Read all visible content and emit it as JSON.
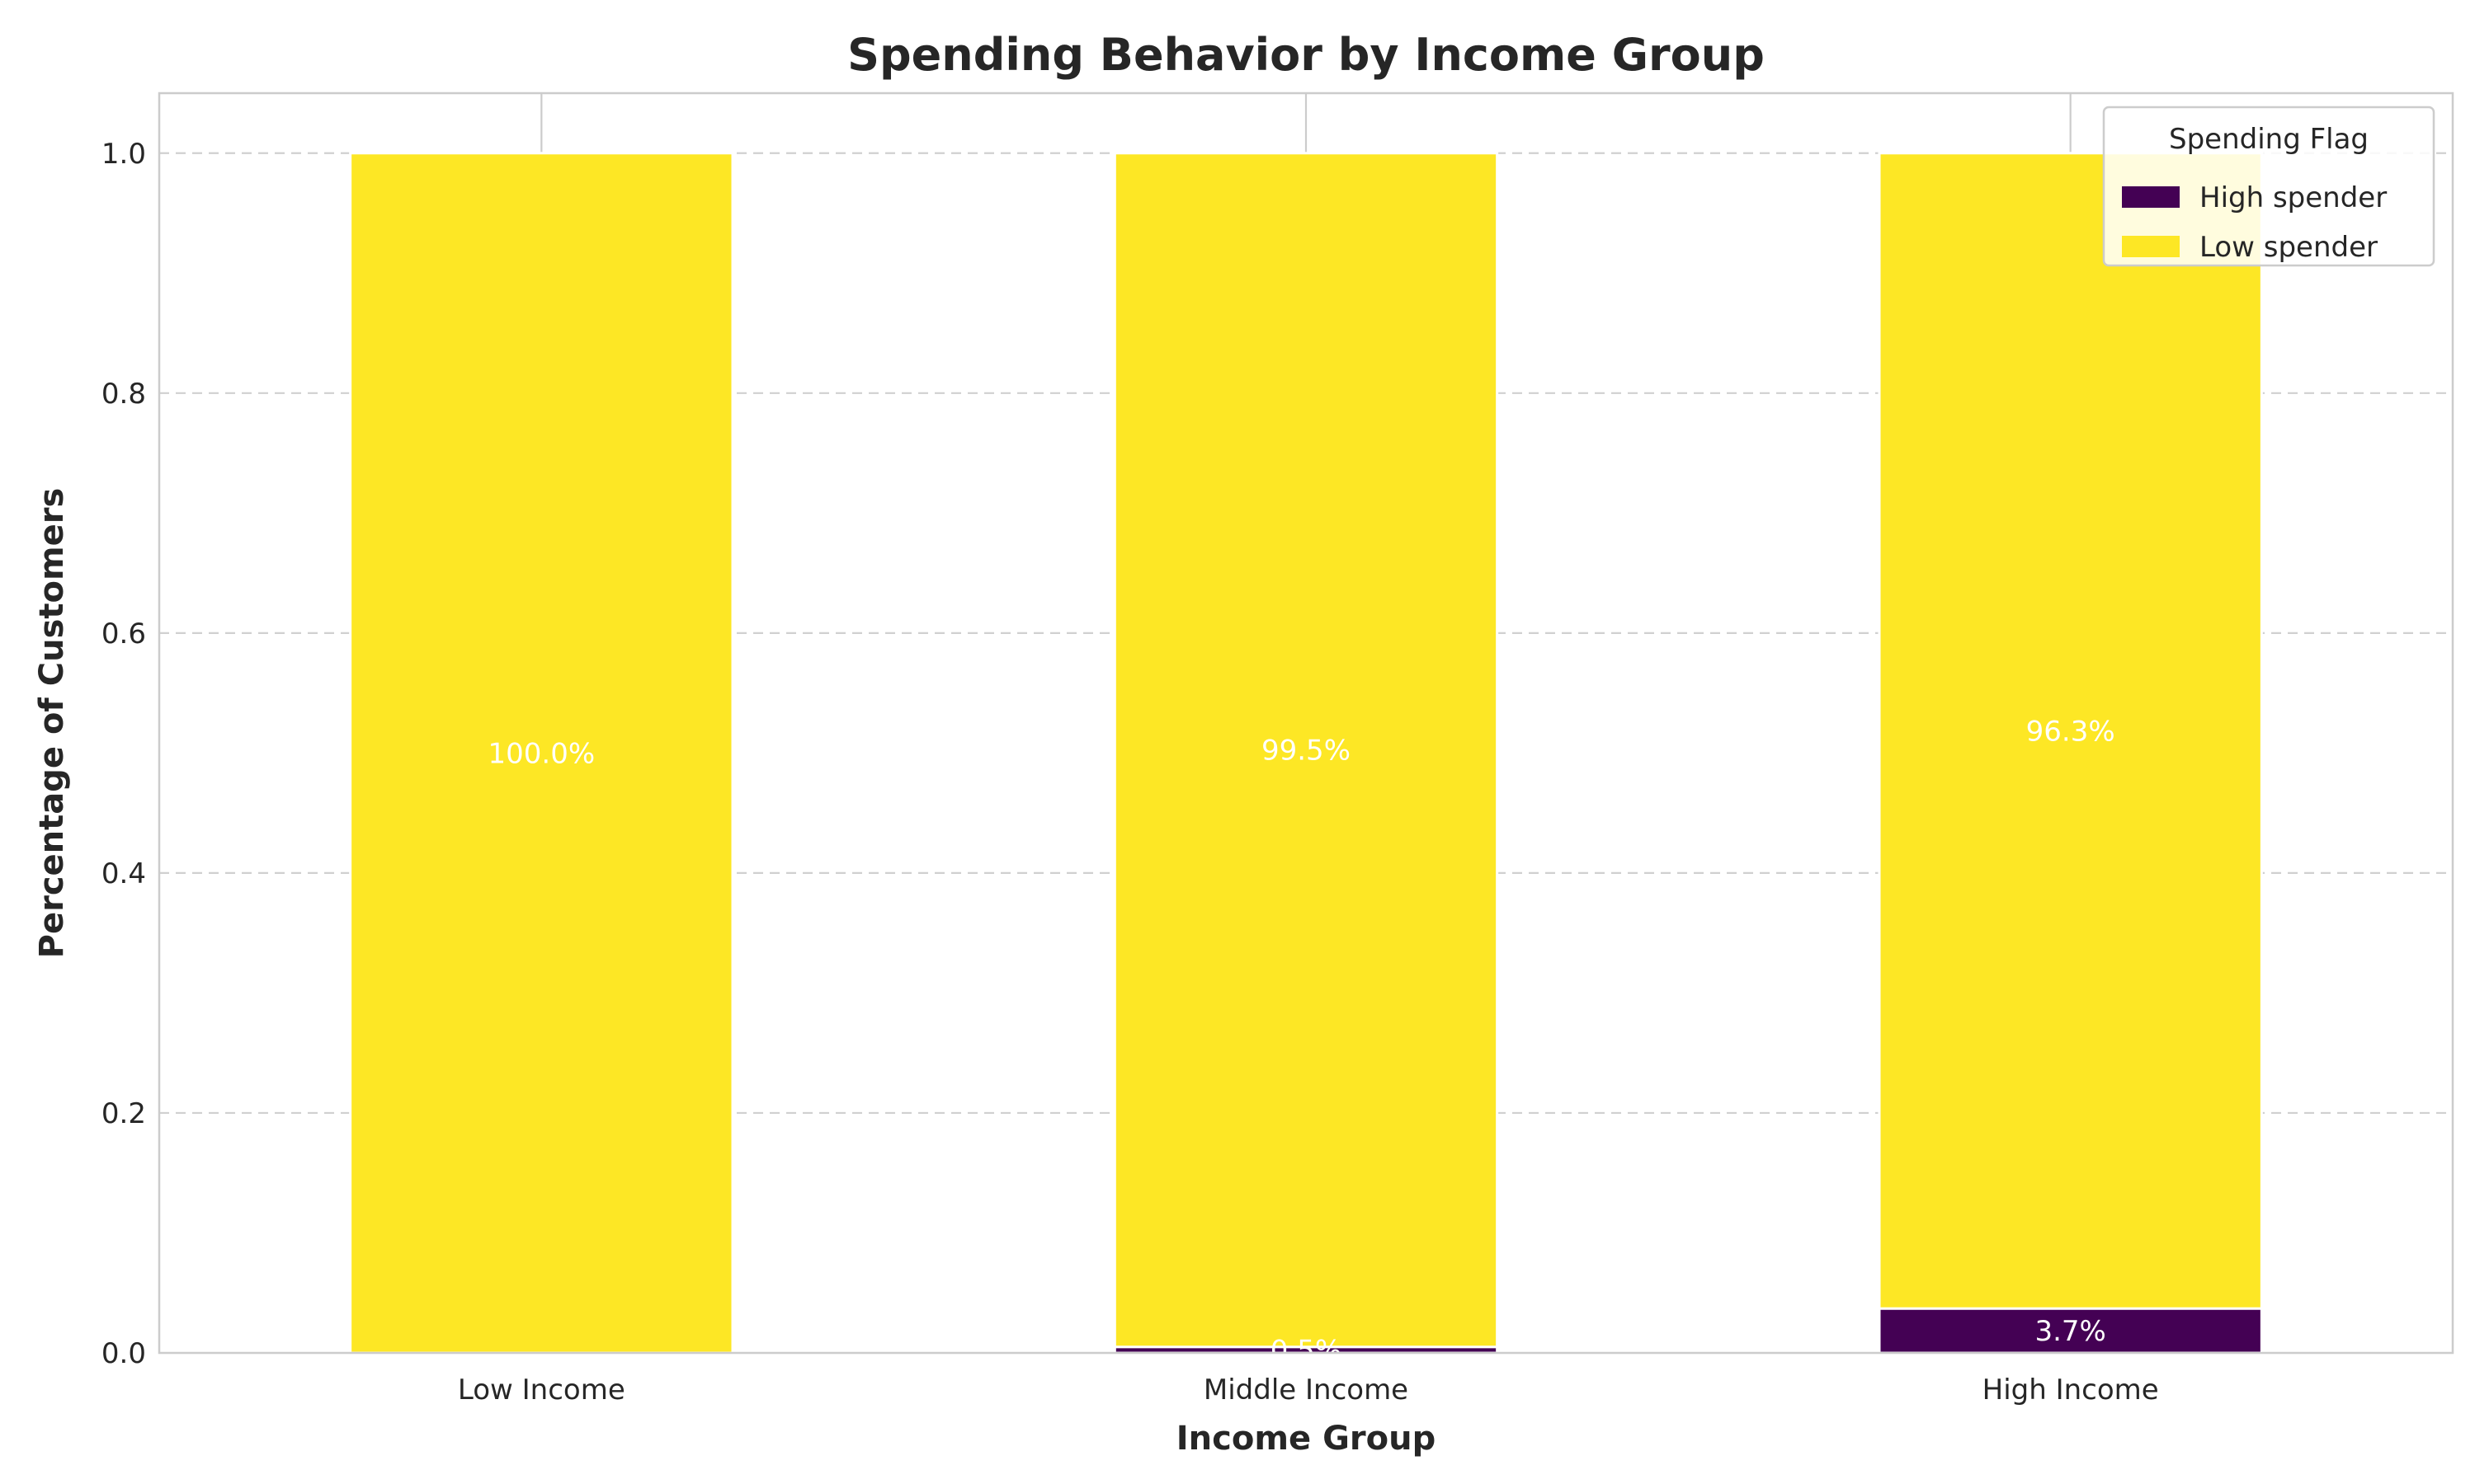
{
  "chart_data": {
    "type": "bar",
    "stacked": true,
    "title": "Spending Behavior by Income Group",
    "xlabel": "Income Group",
    "ylabel": "Percentage of Customers",
    "categories": [
      "Low Income",
      "Middle Income",
      "High Income"
    ],
    "series": [
      {
        "name": "High spender",
        "values": [
          0.0,
          0.005,
          0.037
        ],
        "color": "#440154",
        "labels": [
          "",
          "0.5%",
          "3.7%"
        ]
      },
      {
        "name": "Low spender",
        "values": [
          1.0,
          0.995,
          0.963
        ],
        "color": "#fde725",
        "labels": [
          "100.0%",
          "99.5%",
          "96.3%"
        ]
      }
    ],
    "ylim": [
      0,
      1.05
    ],
    "yticks": [
      0.0,
      0.2,
      0.4,
      0.6,
      0.8,
      1.0
    ],
    "ytick_labels": [
      "0.0",
      "0.2",
      "0.4",
      "0.6",
      "0.8",
      "1.0"
    ],
    "grid": "y dashed",
    "legend": {
      "title": "Spending Flag",
      "placement": "top-right"
    }
  }
}
